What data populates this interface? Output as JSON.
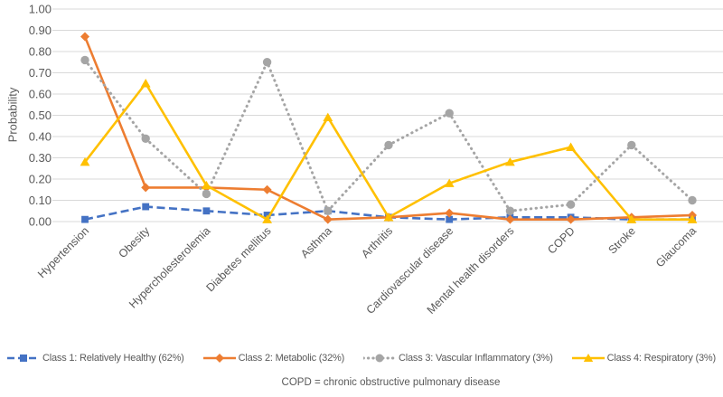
{
  "chart_data": {
    "type": "line",
    "title": "",
    "xlabel": "",
    "ylabel": "Probability",
    "ylim": [
      0.0,
      1.0
    ],
    "ytick_step": 0.1,
    "ytick_format": "0.00",
    "grid": true,
    "legend_position": "bottom",
    "categories": [
      "Hypertension",
      "Obesity",
      "Hypercholesterolemia",
      "Diabetes mellitus",
      "Asthma",
      "Arthritis",
      "Cardiovascular disease",
      "Mental health disorders",
      "COPD",
      "Stroke",
      "Glaucoma"
    ],
    "series": [
      {
        "name": "Class 1: Relatively Healthy (62%)",
        "color": "#4472C4",
        "line_style": "dashed",
        "marker": "square",
        "values": [
          0.01,
          0.07,
          0.05,
          0.03,
          0.05,
          0.02,
          0.01,
          0.02,
          0.02,
          0.01,
          0.01
        ]
      },
      {
        "name": "Class 2: Metabolic (32%)",
        "color": "#ED7D31",
        "line_style": "solid",
        "marker": "diamond",
        "values": [
          0.87,
          0.16,
          0.16,
          0.15,
          0.01,
          0.02,
          0.04,
          0.01,
          0.01,
          0.02,
          0.03
        ]
      },
      {
        "name": "Class 3: Vascular Inflammatory (3%)",
        "color": "#A5A5A5",
        "line_style": "dotted",
        "marker": "circle",
        "values": [
          0.76,
          0.39,
          0.13,
          0.75,
          0.05,
          0.36,
          0.51,
          0.05,
          0.08,
          0.36,
          0.1
        ]
      },
      {
        "name": "Class 4: Respiratory (3%)",
        "color": "#FFC000",
        "line_style": "solid",
        "marker": "triangle",
        "values": [
          0.28,
          0.65,
          0.17,
          0.01,
          0.49,
          0.02,
          0.18,
          0.28,
          0.35,
          0.01,
          0.01
        ]
      }
    ]
  },
  "footnote": "COPD = chronic obstructive pulmonary disease",
  "style": {
    "text_color": "#595959",
    "gridline_color": "#D9D9D9",
    "background": "#FFFFFF"
  }
}
